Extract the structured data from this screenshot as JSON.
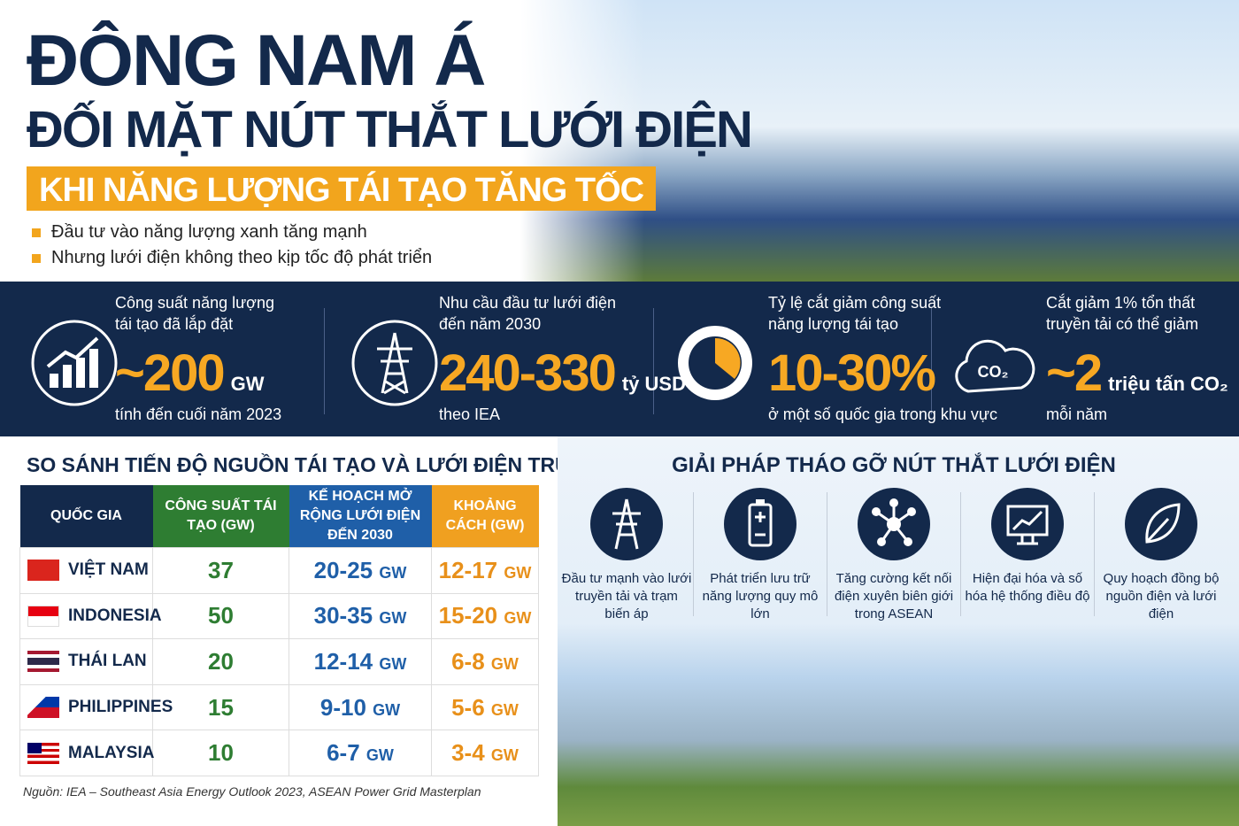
{
  "header": {
    "title_line1": "ĐÔNG NAM Á",
    "title_line2": "ĐỐI MẶT NÚT THẮT LƯỚI ĐIỆN",
    "subtitle": "KHI NĂNG LƯỢNG TÁI TẠO TĂNG TỐC",
    "bullets": [
      "Đầu tư vào năng lượng xanh tăng mạnh",
      "Nhưng lưới điện không theo kịp tốc độ phát triển"
    ]
  },
  "stats": [
    {
      "label": "Công suất năng lượng tái tạo đã lắp đặt",
      "value": "~200",
      "unit": "GW",
      "note": "tính đến cuối năm 2023"
    },
    {
      "label": "Nhu cầu đầu tư lưới điện đến năm 2030",
      "value": "240-330",
      "unit": "tỷ USD",
      "note": "theo IEA"
    },
    {
      "label": "Tỷ lệ cắt giảm công suất năng lượng tái tạo",
      "value": "10-30%",
      "unit": "",
      "note": "ở một số quốc gia trong khu vực"
    },
    {
      "label": "Cắt giảm 1% tổn thất truyền tải có thể giảm",
      "value": "~2",
      "unit": "triệu tấn CO₂",
      "note": "mỗi năm",
      "icon_label": "CO₂"
    }
  ],
  "table": {
    "title": "SO SÁNH TIẾN ĐỘ NGUỒN TÁI TẠO VÀ LƯỚI ĐIỆN TRUYỀN TẢI",
    "headers": [
      "QUỐC GIA",
      "CÔNG SUẤT TÁI TẠO (GW)",
      "KẾ HOẠCH MỞ RỘNG LƯỚI ĐIỆN ĐẾN 2030",
      "KHOẢNG CÁCH (GW)"
    ],
    "unit": "GW",
    "rows": [
      [
        "VIỆT NAM",
        "37",
        "20-25",
        "12-17"
      ],
      [
        "INDONESIA",
        "50",
        "30-35",
        "15-20"
      ],
      [
        "THÁI LAN",
        "20",
        "12-14",
        "6-8"
      ],
      [
        "PHILIPPINES",
        "15",
        "9-10",
        "5-6"
      ],
      [
        "MALAYSIA",
        "10",
        "6-7",
        "3-4"
      ]
    ],
    "source": "Nguồn: IEA – Southeast Asia Energy Outlook 2023, ASEAN Power Grid Masterplan"
  },
  "solutions": {
    "title": "GIẢI PHÁP THÁO GỠ NÚT THẮT LƯỚI ĐIỆN",
    "items": [
      "Đầu tư mạnh vào lưới truyền tải và trạm biến áp",
      "Phát triển lưu trữ năng lượng quy mô lớn",
      "Tăng cường kết nối điện xuyên biên giới trong ASEAN",
      "Hiện đại hóa và số hóa hệ thống điều độ",
      "Quy hoạch đồng bộ nguồn điện và lưới điện"
    ]
  }
}
